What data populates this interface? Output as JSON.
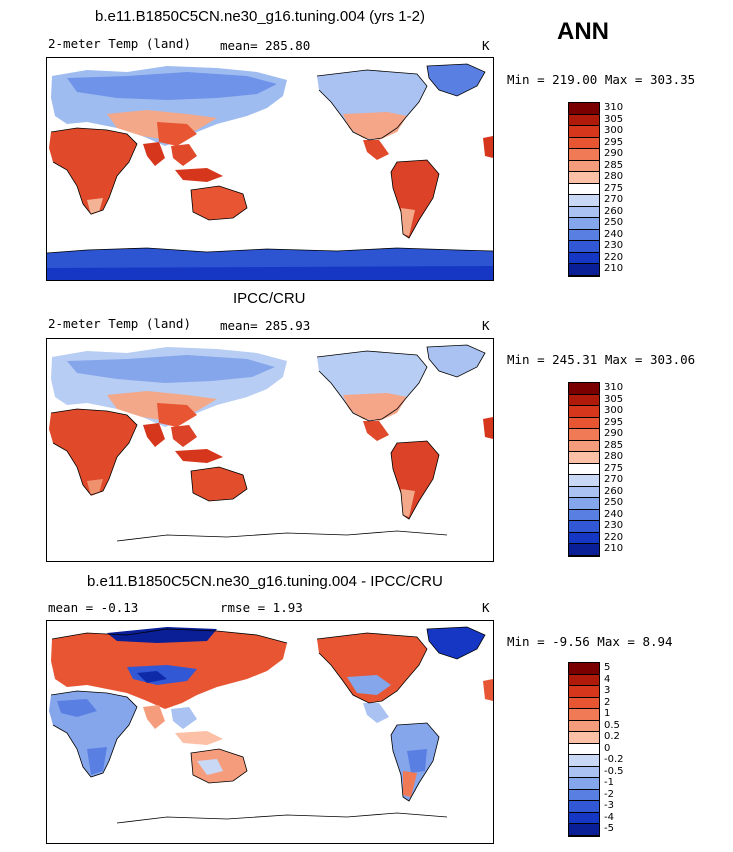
{
  "season": "ANN",
  "panels": [
    {
      "title": "b.e11.B1850C5CN.ne30_g16.tuning.004 (yrs 1-2)",
      "left_label": "2-meter Temp (land)",
      "stat_label": "mean= 285.80",
      "units": "K",
      "minmax": "Min = 219.00 Max = 303.35",
      "colorbar": [
        "310",
        "305",
        "300",
        "295",
        "290",
        "285",
        "280",
        "275",
        "270",
        "260",
        "250",
        "240",
        "230",
        "220",
        "210"
      ],
      "colors": [
        "#7a0000",
        "#b01a0a",
        "#d6361c",
        "#e85532",
        "#ef7a55",
        "#f59c7c",
        "#fbc0a6",
        "#ffffff",
        "#c8d8f5",
        "#a9c2f2",
        "#86a6ec",
        "#5a7fe2",
        "#3358d6",
        "#1636c4",
        "#0a1e96"
      ]
    },
    {
      "title": "IPCC/CRU",
      "left_label": "2-meter Temp (land)",
      "stat_label": "mean= 285.93",
      "units": "K",
      "minmax": "Min = 245.31 Max = 303.06",
      "colorbar": [
        "310",
        "305",
        "300",
        "295",
        "290",
        "285",
        "280",
        "275",
        "270",
        "260",
        "250",
        "240",
        "230",
        "220",
        "210"
      ],
      "colors": [
        "#7a0000",
        "#b01a0a",
        "#d6361c",
        "#e85532",
        "#ef7a55",
        "#f59c7c",
        "#fbc0a6",
        "#ffffff",
        "#c8d8f5",
        "#a9c2f2",
        "#86a6ec",
        "#5a7fe2",
        "#3358d6",
        "#1636c4",
        "#0a1e96"
      ]
    },
    {
      "title": "b.e11.B1850C5CN.ne30_g16.tuning.004 - IPCC/CRU",
      "left_label": "mean =   -0.13",
      "stat_label": "rmse =    1.93",
      "units": "K",
      "minmax": "Min =  -9.56 Max =   8.94",
      "colorbar": [
        "5",
        "4",
        "3",
        "2",
        "1",
        "0.5",
        "0.2",
        "0",
        "-0.2",
        "-0.5",
        "-1",
        "-2",
        "-3",
        "-4",
        "-5"
      ],
      "colors": [
        "#7a0000",
        "#b01a0a",
        "#d6361c",
        "#e85532",
        "#ef7a55",
        "#f59c7c",
        "#fbc0a6",
        "#ffffff",
        "#c8d8f5",
        "#a9c2f2",
        "#86a6ec",
        "#5a7fe2",
        "#3358d6",
        "#1636c4",
        "#0a1e96"
      ]
    }
  ]
}
